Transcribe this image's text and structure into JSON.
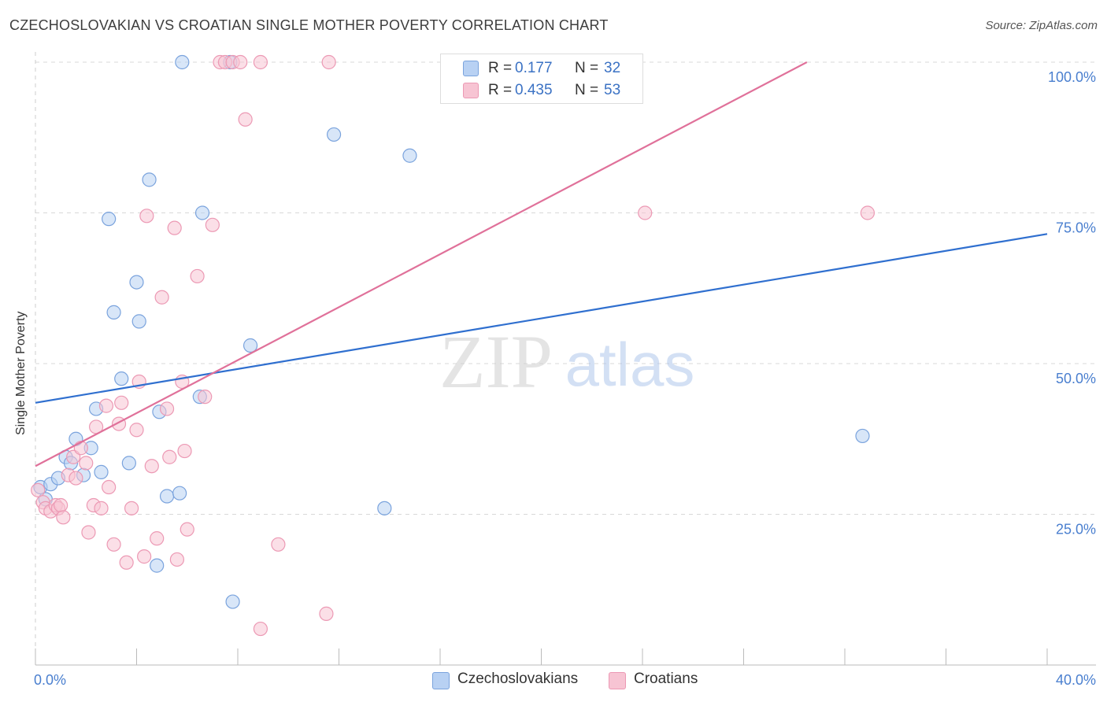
{
  "title": "CZECHOSLOVAKIAN VS CROATIAN SINGLE MOTHER POVERTY CORRELATION CHART",
  "source": "Source: ZipAtlas.com",
  "watermark": {
    "zip": "ZIP",
    "atlas": "atlas"
  },
  "legend": {
    "r_label": "R =",
    "n_label": "N =",
    "rows": [
      {
        "name": "Czechoslovakians",
        "r": "0.177",
        "n": "32"
      },
      {
        "name": "Croatians",
        "r": "0.435",
        "n": "53"
      }
    ]
  },
  "colors": {
    "czech_fill": "#b8d1f3",
    "czech_stroke": "#7aa3dd",
    "czech_line": "#2f6fcf",
    "croat_fill": "#f7c4d3",
    "croat_stroke": "#ec99b4",
    "croat_line": "#e0719a",
    "axis_label": "#4a7fcf",
    "grid": "#d8d8d8"
  },
  "chart_data": {
    "type": "scatter",
    "title": "CZECHOSLOVAKIAN VS CROATIAN SINGLE MOTHER POVERTY CORRELATION CHART",
    "xlabel": "",
    "ylabel": "Single Mother Poverty",
    "xlim": [
      0,
      40
    ],
    "ylim": [
      0,
      100
    ],
    "x_tick_labels": [
      "0.0%",
      "40.0%"
    ],
    "y_ticks": [
      25,
      50,
      75,
      100
    ],
    "y_tick_labels": [
      "25.0%",
      "50.0%",
      "75.0%",
      "100.0%"
    ],
    "grid": true,
    "series": [
      {
        "name": "Czechoslovakians",
        "r": 0.177,
        "n": 32,
        "trend": {
          "x": [
            0,
            40
          ],
          "y": [
            43.5,
            71.5
          ]
        },
        "points": [
          {
            "x": 0.2,
            "y": 29.5
          },
          {
            "x": 0.4,
            "y": 27.5
          },
          {
            "x": 0.6,
            "y": 30.0
          },
          {
            "x": 0.9,
            "y": 31.0
          },
          {
            "x": 1.2,
            "y": 34.5
          },
          {
            "x": 1.4,
            "y": 33.5
          },
          {
            "x": 1.6,
            "y": 37.5
          },
          {
            "x": 1.9,
            "y": 31.5
          },
          {
            "x": 2.2,
            "y": 36.0
          },
          {
            "x": 2.4,
            "y": 42.5
          },
          {
            "x": 2.6,
            "y": 32.0
          },
          {
            "x": 2.9,
            "y": 74.0
          },
          {
            "x": 3.1,
            "y": 58.5
          },
          {
            "x": 3.4,
            "y": 47.5
          },
          {
            "x": 3.7,
            "y": 33.5
          },
          {
            "x": 4.0,
            "y": 63.5
          },
          {
            "x": 4.1,
            "y": 57.0
          },
          {
            "x": 4.5,
            "y": 80.5
          },
          {
            "x": 4.8,
            "y": 16.5
          },
          {
            "x": 4.9,
            "y": 42.0
          },
          {
            "x": 5.2,
            "y": 28.0
          },
          {
            "x": 5.8,
            "y": 100.0
          },
          {
            "x": 5.7,
            "y": 28.5
          },
          {
            "x": 6.5,
            "y": 44.5
          },
          {
            "x": 6.6,
            "y": 75.0
          },
          {
            "x": 7.7,
            "y": 100.0
          },
          {
            "x": 7.8,
            "y": 10.5
          },
          {
            "x": 8.5,
            "y": 53.0
          },
          {
            "x": 11.8,
            "y": 88.0
          },
          {
            "x": 13.8,
            "y": 26.0
          },
          {
            "x": 14.8,
            "y": 84.5
          },
          {
            "x": 32.7,
            "y": 38.0
          }
        ]
      },
      {
        "name": "Croatians",
        "r": 0.435,
        "n": 53,
        "trend": {
          "x": [
            0,
            30.5
          ],
          "y": [
            33.0,
            100.0
          ]
        },
        "points": [
          {
            "x": 0.1,
            "y": 29.0
          },
          {
            "x": 0.3,
            "y": 27.0
          },
          {
            "x": 0.4,
            "y": 26.0
          },
          {
            "x": 0.6,
            "y": 25.5
          },
          {
            "x": 0.8,
            "y": 26.5
          },
          {
            "x": 0.9,
            "y": 26.0
          },
          {
            "x": 1.0,
            "y": 26.5
          },
          {
            "x": 1.1,
            "y": 24.5
          },
          {
            "x": 1.3,
            "y": 31.5
          },
          {
            "x": 1.5,
            "y": 34.5
          },
          {
            "x": 1.6,
            "y": 31.0
          },
          {
            "x": 1.8,
            "y": 36.0
          },
          {
            "x": 2.0,
            "y": 33.5
          },
          {
            "x": 2.1,
            "y": 22.0
          },
          {
            "x": 2.3,
            "y": 26.5
          },
          {
            "x": 2.4,
            "y": 39.5
          },
          {
            "x": 2.6,
            "y": 26.0
          },
          {
            "x": 2.8,
            "y": 43.0
          },
          {
            "x": 2.9,
            "y": 29.5
          },
          {
            "x": 3.1,
            "y": 20.0
          },
          {
            "x": 3.3,
            "y": 40.0
          },
          {
            "x": 3.4,
            "y": 43.5
          },
          {
            "x": 3.6,
            "y": 17.0
          },
          {
            "x": 3.8,
            "y": 26.0
          },
          {
            "x": 4.0,
            "y": 39.0
          },
          {
            "x": 4.1,
            "y": 47.0
          },
          {
            "x": 4.3,
            "y": 18.0
          },
          {
            "x": 4.4,
            "y": 74.5
          },
          {
            "x": 4.6,
            "y": 33.0
          },
          {
            "x": 4.8,
            "y": 21.0
          },
          {
            "x": 5.0,
            "y": 61.0
          },
          {
            "x": 5.2,
            "y": 42.5
          },
          {
            "x": 5.3,
            "y": 34.5
          },
          {
            "x": 5.5,
            "y": 72.5
          },
          {
            "x": 5.6,
            "y": 17.5
          },
          {
            "x": 5.8,
            "y": 47.0
          },
          {
            "x": 5.9,
            "y": 35.5
          },
          {
            "x": 6.0,
            "y": 22.5
          },
          {
            "x": 6.4,
            "y": 64.5
          },
          {
            "x": 6.7,
            "y": 44.5
          },
          {
            "x": 7.0,
            "y": 73.0
          },
          {
            "x": 7.3,
            "y": 100.0
          },
          {
            "x": 7.5,
            "y": 100.0
          },
          {
            "x": 7.8,
            "y": 100.0
          },
          {
            "x": 8.1,
            "y": 100.0
          },
          {
            "x": 8.3,
            "y": 90.5
          },
          {
            "x": 8.9,
            "y": 6.0
          },
          {
            "x": 8.9,
            "y": 100.0
          },
          {
            "x": 9.6,
            "y": 20.0
          },
          {
            "x": 11.5,
            "y": 8.5
          },
          {
            "x": 11.6,
            "y": 100.0
          },
          {
            "x": 24.1,
            "y": 75.0
          },
          {
            "x": 32.9,
            "y": 75.0
          }
        ]
      }
    ]
  }
}
